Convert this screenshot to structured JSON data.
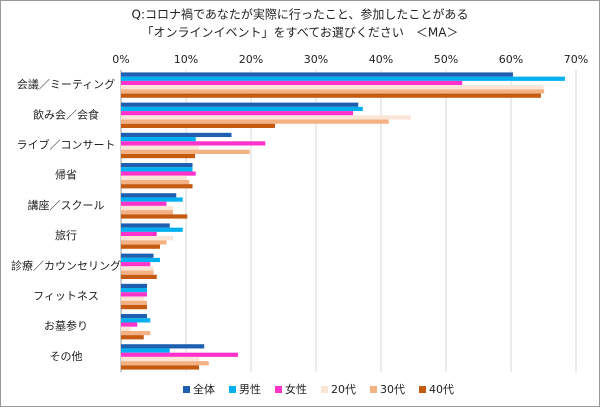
{
  "chart_data": {
    "type": "hbar",
    "title": "Q:コロナ禍であなたが実際に行ったこと、参加したことがある",
    "subtitle": "「オンラインイベント」をすべてお選びください　＜MA＞",
    "categories": [
      "会議／ミーティング",
      "飲み会／会食",
      "ライブ／コンサート",
      "帰省",
      "講座／スクール",
      "旅行",
      "診療／カウンセリング",
      "フィットネス",
      "お墓参り",
      "その他"
    ],
    "series": [
      {
        "name": "全体",
        "color": "#1f5fb0",
        "values": [
          60.3,
          36.5,
          17,
          11,
          8.5,
          7.5,
          5,
          4,
          4,
          12.8
        ]
      },
      {
        "name": "男性",
        "color": "#00b0f0",
        "values": [
          68.3,
          37.2,
          11.5,
          11,
          9.5,
          9.5,
          6,
          4,
          4.5,
          7.5
        ]
      },
      {
        "name": "女性",
        "color": "#ff33cc",
        "values": [
          52.5,
          35.7,
          22.2,
          11.5,
          7,
          5.5,
          4.5,
          4,
          2.5,
          18
        ]
      },
      {
        "name": "20代",
        "color": "#fbe5d6",
        "values": [
          65,
          44.6,
          12,
          10,
          8,
          8,
          5,
          3.5,
          1.5,
          12
        ]
      },
      {
        "name": "30代",
        "color": "#f4b183",
        "values": [
          65.1,
          41.2,
          19.8,
          10.5,
          8,
          7,
          5,
          4,
          4.5,
          13.5
        ]
      },
      {
        "name": "40代",
        "color": "#c55a11",
        "values": [
          64.6,
          23.7,
          11.4,
          11,
          10.2,
          6,
          5.5,
          4,
          3.5,
          12
        ]
      }
    ],
    "xlim": [
      0,
      70
    ],
    "xticks": [
      {
        "value": 0,
        "label": "0%"
      },
      {
        "value": 10,
        "label": "10%"
      },
      {
        "value": 20,
        "label": "20%"
      },
      {
        "value": 30,
        "label": "30%"
      },
      {
        "value": 40,
        "label": "40%"
      },
      {
        "value": 50,
        "label": "50%"
      },
      {
        "value": 60,
        "label": "60%"
      },
      {
        "value": 70,
        "label": "70%"
      }
    ],
    "grid": true
  }
}
